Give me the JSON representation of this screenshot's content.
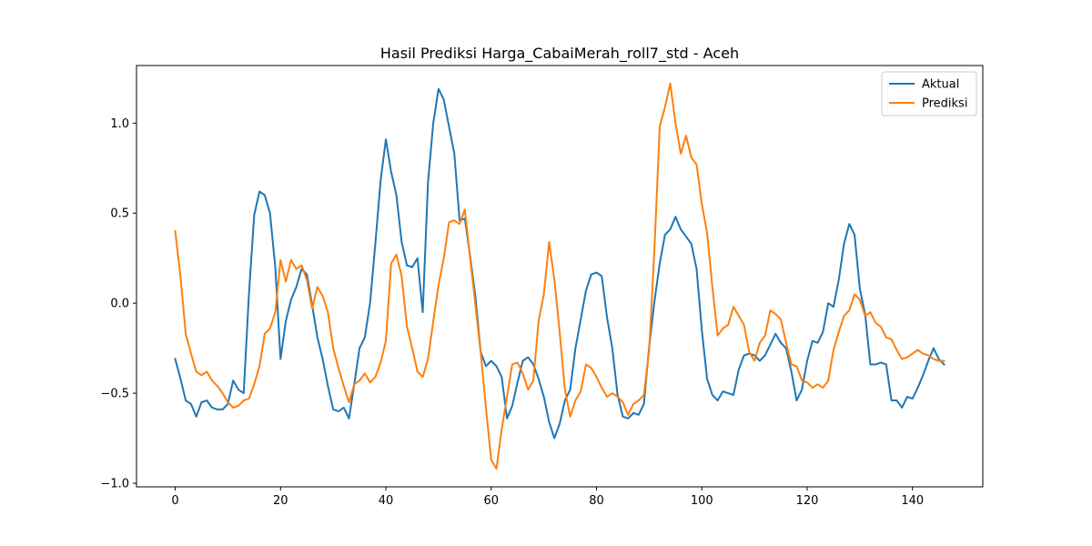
{
  "chart_data": {
    "type": "line",
    "title": "Hasil Prediksi Harga_CabaiMerah_roll7_std - Aceh",
    "xlabel": "",
    "ylabel": "",
    "xlim": [
      -7.35,
      153.35
    ],
    "ylim": [
      -1.02,
      1.32
    ],
    "xticks": [
      0,
      20,
      40,
      60,
      80,
      100,
      120,
      140
    ],
    "xtick_labels": [
      "0",
      "20",
      "40",
      "60",
      "80",
      "100",
      "120",
      "140"
    ],
    "yticks": [
      -1.0,
      -0.5,
      0.0,
      0.5,
      1.0
    ],
    "ytick_labels": [
      "−1.0",
      "−0.5",
      "0.0",
      "0.5",
      "1.0"
    ],
    "grid": false,
    "legend_position": "top-right",
    "series": [
      {
        "name": "Aktual",
        "color": "#1f77b4",
        "values": [
          -0.31,
          -0.42,
          -0.54,
          -0.56,
          -0.63,
          -0.55,
          -0.54,
          -0.58,
          -0.59,
          -0.59,
          -0.56,
          -0.43,
          -0.48,
          -0.5,
          0.05,
          0.49,
          0.62,
          0.6,
          0.5,
          0.2,
          -0.31,
          -0.1,
          0.02,
          0.09,
          0.19,
          0.16,
          -0.01,
          -0.19,
          -0.31,
          -0.46,
          -0.59,
          -0.6,
          -0.58,
          -0.64,
          -0.45,
          -0.25,
          -0.19,
          0.0,
          0.33,
          0.68,
          0.91,
          0.73,
          0.6,
          0.34,
          0.21,
          0.2,
          0.25,
          -0.05,
          0.67,
          1.0,
          1.19,
          1.13,
          0.98,
          0.83,
          0.46,
          0.47,
          0.26,
          0.04,
          -0.27,
          -0.35,
          -0.32,
          -0.35,
          -0.41,
          -0.64,
          -0.57,
          -0.44,
          -0.32,
          -0.3,
          -0.34,
          -0.42,
          -0.52,
          -0.66,
          -0.75,
          -0.67,
          -0.54,
          -0.48,
          -0.25,
          -0.09,
          0.07,
          0.16,
          0.17,
          0.15,
          -0.08,
          -0.25,
          -0.51,
          -0.63,
          -0.64,
          -0.61,
          -0.62,
          -0.56,
          -0.24,
          0.01,
          0.22,
          0.38,
          0.41,
          0.48,
          0.41,
          0.37,
          0.33,
          0.19,
          -0.15,
          -0.42,
          -0.51,
          -0.54,
          -0.49,
          -0.5,
          -0.51,
          -0.37,
          -0.29,
          -0.28,
          -0.29,
          -0.32,
          -0.29,
          -0.23,
          -0.17,
          -0.22,
          -0.25,
          -0.38,
          -0.54,
          -0.48,
          -0.32,
          -0.21,
          -0.22,
          -0.16,
          0.0,
          -0.02,
          0.13,
          0.33,
          0.44,
          0.38,
          0.08,
          -0.06,
          -0.34,
          -0.34,
          -0.33,
          -0.34,
          -0.54,
          -0.54,
          -0.58,
          -0.52,
          -0.53,
          -0.47,
          -0.4,
          -0.32,
          -0.25,
          -0.31,
          -0.34
        ]
      },
      {
        "name": "Prediksi",
        "color": "#ff7f0e",
        "values": [
          0.4,
          0.15,
          -0.17,
          -0.28,
          -0.38,
          -0.4,
          -0.38,
          -0.43,
          -0.46,
          -0.5,
          -0.55,
          -0.58,
          -0.57,
          -0.54,
          -0.53,
          -0.45,
          -0.35,
          -0.17,
          -0.14,
          -0.05,
          0.24,
          0.12,
          0.24,
          0.19,
          0.21,
          0.13,
          -0.03,
          0.09,
          0.04,
          -0.05,
          -0.25,
          -0.36,
          -0.46,
          -0.55,
          -0.45,
          -0.43,
          -0.39,
          -0.44,
          -0.41,
          -0.33,
          -0.21,
          0.22,
          0.27,
          0.15,
          -0.13,
          -0.25,
          -0.38,
          -0.41,
          -0.31,
          -0.1,
          0.1,
          0.25,
          0.45,
          0.46,
          0.44,
          0.52,
          0.25,
          -0.01,
          -0.27,
          -0.58,
          -0.87,
          -0.92,
          -0.7,
          -0.52,
          -0.34,
          -0.33,
          -0.39,
          -0.48,
          -0.43,
          -0.1,
          0.05,
          0.34,
          0.13,
          -0.16,
          -0.48,
          -0.63,
          -0.54,
          -0.49,
          -0.34,
          -0.36,
          -0.41,
          -0.47,
          -0.52,
          -0.5,
          -0.52,
          -0.55,
          -0.62,
          -0.56,
          -0.54,
          -0.51,
          -0.26,
          0.3,
          0.98,
          1.09,
          1.22,
          1.0,
          0.83,
          0.93,
          0.81,
          0.77,
          0.55,
          0.39,
          0.09,
          -0.18,
          -0.14,
          -0.12,
          -0.02,
          -0.07,
          -0.12,
          -0.27,
          -0.32,
          -0.22,
          -0.18,
          -0.04,
          -0.06,
          -0.09,
          -0.22,
          -0.34,
          -0.35,
          -0.43,
          -0.44,
          -0.47,
          -0.45,
          -0.47,
          -0.43,
          -0.26,
          -0.16,
          -0.07,
          -0.04,
          0.05,
          0.02,
          -0.07,
          -0.05,
          -0.11,
          -0.13,
          -0.19,
          -0.2,
          -0.26,
          -0.31,
          -0.3,
          -0.28,
          -0.26,
          -0.28,
          -0.29,
          -0.31,
          -0.32,
          -0.32
        ]
      }
    ]
  }
}
